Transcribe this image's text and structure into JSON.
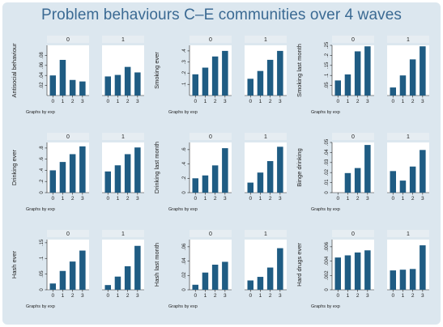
{
  "figure": {
    "title": "Problem behaviours C–E communities over 4 waves",
    "colors": {
      "bar": "#1f5c83",
      "frame": "#dce7ef",
      "panel_bg": "#ffffff",
      "strip_bg": "#e6edf2",
      "title": "#3b6a93",
      "text": "#222222"
    }
  },
  "chart_data": [
    {
      "type": "bar",
      "ylabel": "Antisocial behaviour",
      "note": "Graphs by exp",
      "ylim": [
        0,
        0.1
      ],
      "yticks": [
        ".02",
        ".04",
        ".06",
        ".08"
      ],
      "ytick_values": [
        0.02,
        0.04,
        0.06,
        0.08
      ],
      "categories": [
        "0",
        "1",
        "2",
        "3"
      ],
      "panels": [
        {
          "label": "0",
          "values": [
            0.04,
            0.071,
            0.031,
            0.028
          ]
        },
        {
          "label": "1",
          "values": [
            0.038,
            0.041,
            0.057,
            0.046
          ]
        }
      ]
    },
    {
      "type": "bar",
      "ylabel": "Smoking ever",
      "note": "Graphs by exp",
      "ylim": [
        0,
        0.45
      ],
      "yticks": [
        ".1",
        ".2",
        ".3",
        ".4"
      ],
      "ytick_values": [
        0.1,
        0.2,
        0.3,
        0.4
      ],
      "categories": [
        "0",
        "1",
        "2",
        "3"
      ],
      "panels": [
        {
          "label": "0",
          "values": [
            0.19,
            0.25,
            0.35,
            0.4
          ]
        },
        {
          "label": "1",
          "values": [
            0.15,
            0.22,
            0.32,
            0.4
          ]
        }
      ]
    },
    {
      "type": "bar",
      "ylabel": "Smoking last month",
      "note": "Graphs by exp",
      "ylim": [
        0,
        0.25
      ],
      "yticks": [
        ".05",
        ".1",
        ".15",
        ".2",
        ".25"
      ],
      "ytick_values": [
        0.05,
        0.1,
        0.15,
        0.2,
        0.25
      ],
      "categories": [
        "0",
        "1",
        "2",
        "3"
      ],
      "panels": [
        {
          "label": "0",
          "values": [
            0.075,
            0.105,
            0.22,
            0.245
          ]
        },
        {
          "label": "1",
          "values": [
            0.04,
            0.1,
            0.18,
            0.245
          ]
        }
      ]
    },
    {
      "type": "bar",
      "ylabel": "Drinking ever",
      "note": "Graphs by exp",
      "ylim": [
        0,
        0.9
      ],
      "yticks": [
        "0",
        ".2",
        ".4",
        ".6",
        ".8"
      ],
      "ytick_values": [
        0,
        0.2,
        0.4,
        0.6,
        0.8
      ],
      "categories": [
        "0",
        "1",
        "2",
        "3"
      ],
      "panels": [
        {
          "label": "0",
          "values": [
            0.4,
            0.55,
            0.69,
            0.83
          ]
        },
        {
          "label": "1",
          "values": [
            0.38,
            0.49,
            0.69,
            0.81
          ]
        }
      ]
    },
    {
      "type": "bar",
      "ylabel": "Drinking last month",
      "note": "Graphs by exp",
      "ylim": [
        0,
        0.7
      ],
      "yticks": [
        "0",
        ".2",
        ".4",
        ".6"
      ],
      "ytick_values": [
        0,
        0.2,
        0.4,
        0.6
      ],
      "categories": [
        "0",
        "1",
        "2",
        "3"
      ],
      "panels": [
        {
          "label": "0",
          "values": [
            0.2,
            0.24,
            0.38,
            0.62
          ]
        },
        {
          "label": "1",
          "values": [
            0.14,
            0.28,
            0.44,
            0.64
          ]
        }
      ]
    },
    {
      "type": "bar",
      "ylabel": "Binge drinking",
      "note": "Graphs by exp",
      "ylim": [
        0,
        0.05
      ],
      "yticks": [
        "0",
        ".01",
        ".02",
        ".03",
        ".04",
        ".05"
      ],
      "ytick_values": [
        0,
        0.01,
        0.02,
        0.03,
        0.04,
        0.05
      ],
      "categories": [
        "0",
        "1",
        "2",
        "3"
      ],
      "panels": [
        {
          "label": "0",
          "values": [
            0.0,
            0.0195,
            0.0245,
            0.0475
          ]
        },
        {
          "label": "1",
          "values": [
            0.0215,
            0.012,
            0.026,
            0.0425
          ]
        }
      ]
    },
    {
      "type": "bar",
      "ylabel": "Hash ever",
      "note": "Graphs by exp",
      "ylim": [
        0,
        0.16
      ],
      "yticks": [
        "0",
        ".05",
        ".1",
        ".15"
      ],
      "ytick_values": [
        0,
        0.05,
        0.1,
        0.15
      ],
      "categories": [
        "0",
        "1",
        "2",
        "3"
      ],
      "panels": [
        {
          "label": "0",
          "values": [
            0.02,
            0.06,
            0.09,
            0.125
          ]
        },
        {
          "label": "1",
          "values": [
            0.015,
            0.042,
            0.075,
            0.14
          ]
        }
      ]
    },
    {
      "type": "bar",
      "ylabel": "Hash last month",
      "note": "Graphs by exp",
      "ylim": [
        0,
        0.07
      ],
      "yticks": [
        "0",
        ".02",
        ".04",
        ".06"
      ],
      "ytick_values": [
        0,
        0.02,
        0.04,
        0.06
      ],
      "categories": [
        "0",
        "1",
        "2",
        "3"
      ],
      "panels": [
        {
          "label": "0",
          "values": [
            0.007,
            0.024,
            0.035,
            0.039
          ]
        },
        {
          "label": "1",
          "values": [
            0.013,
            0.018,
            0.031,
            0.058
          ]
        }
      ]
    },
    {
      "type": "bar",
      "ylabel": "Hard drugs ever",
      "note": "Graphs by exp",
      "ylim": [
        0,
        0.007
      ],
      "yticks": [
        "0",
        ".002",
        ".004",
        ".006"
      ],
      "ytick_values": [
        0,
        0.002,
        0.004,
        0.006
      ],
      "categories": [
        "0",
        "1",
        "2",
        "3"
      ],
      "panels": [
        {
          "label": "0",
          "values": [
            0.0045,
            0.0048,
            0.0052,
            0.0055
          ]
        },
        {
          "label": "1",
          "values": [
            0.0027,
            0.0028,
            0.0029,
            0.0062
          ]
        }
      ]
    }
  ]
}
